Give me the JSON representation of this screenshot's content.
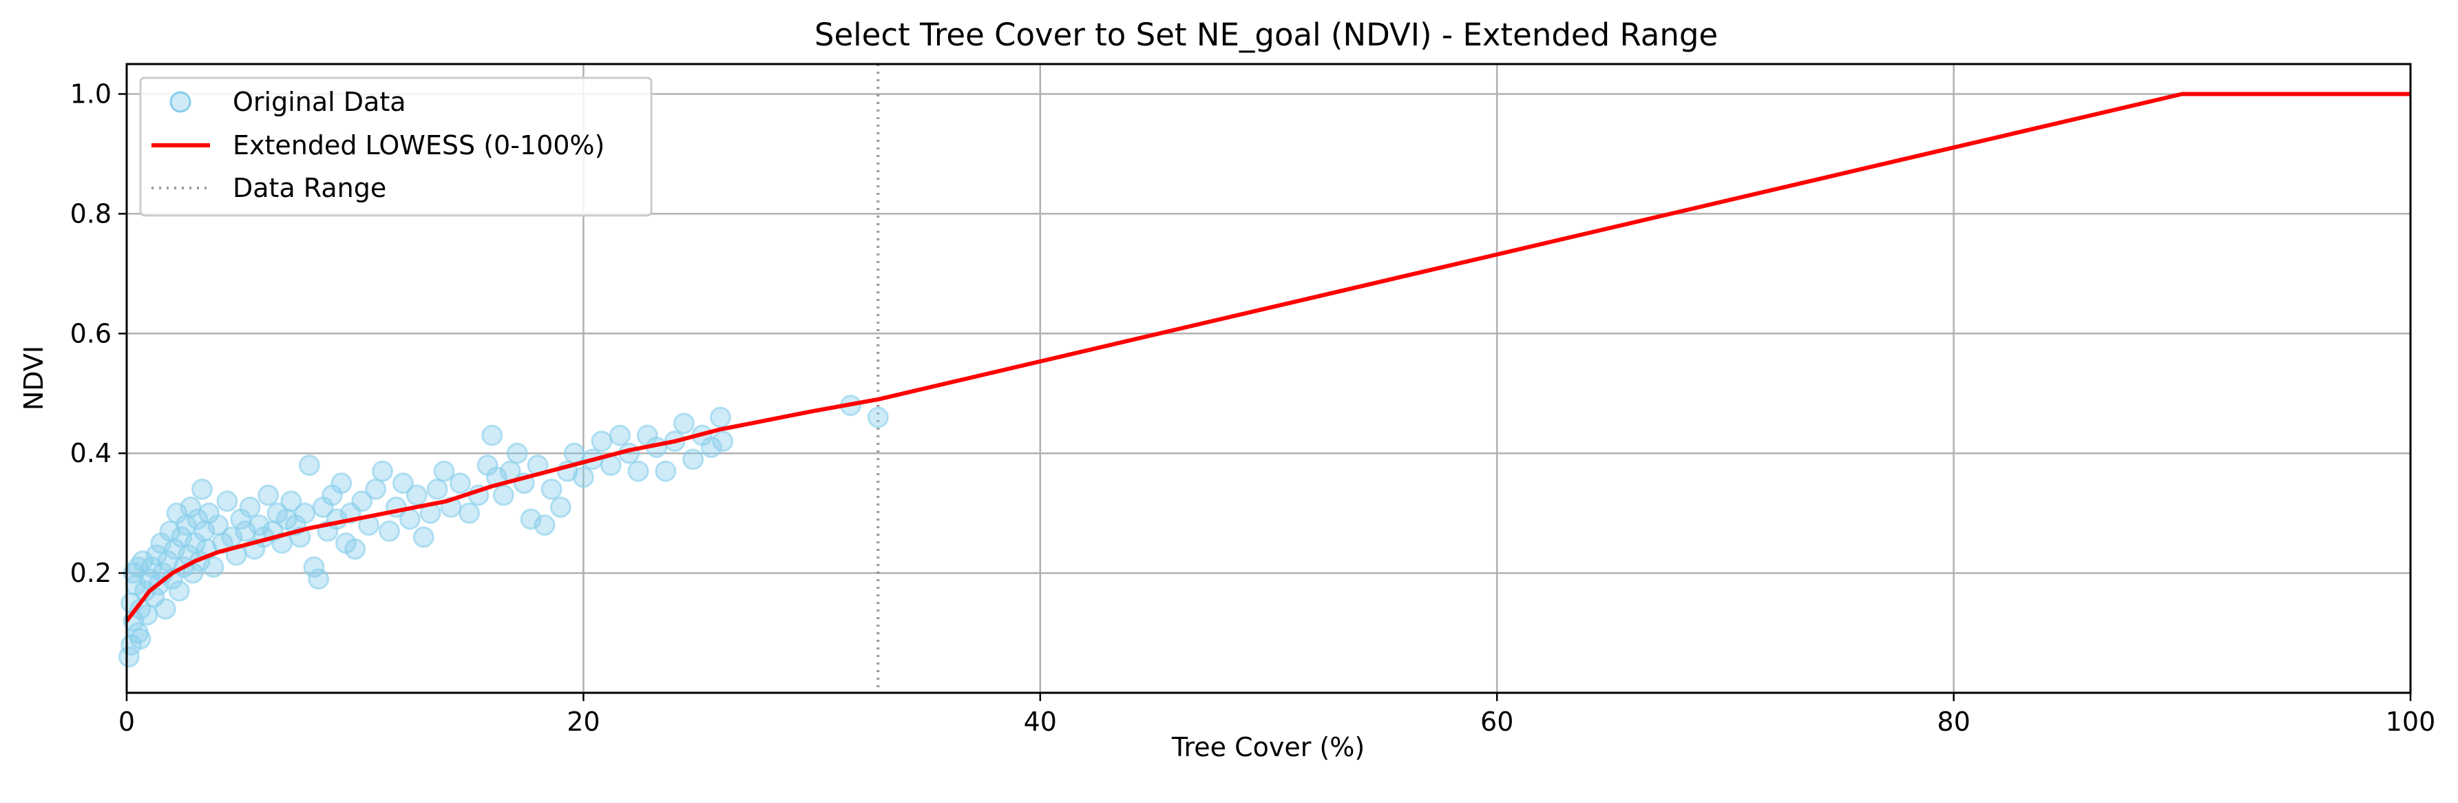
{
  "chart_data": {
    "type": "scatter",
    "title": "Select Tree Cover to Set NE_goal (NDVI) - Extended Range",
    "xlabel": "Tree Cover (%)",
    "ylabel": "NDVI",
    "xlim": [
      0,
      100
    ],
    "ylim": [
      0.0,
      1.05
    ],
    "xticks": [
      "0",
      "20",
      "40",
      "60",
      "80",
      "100"
    ],
    "yticks": [
      "0.2",
      "0.4",
      "0.6",
      "0.8",
      "1.0"
    ],
    "grid": true,
    "legend_position": "upper-left",
    "legend": [
      "Original Data",
      "Extended LOWESS (0-100%)",
      "Data Range"
    ],
    "colors": {
      "scatter": "#87ceeb",
      "lowess": "#ff0000",
      "range": "#808080"
    },
    "series": [
      {
        "name": "Original Data",
        "type": "scatter",
        "points": [
          [
            0.1,
            0.06
          ],
          [
            0.2,
            0.08
          ],
          [
            0.3,
            0.12
          ],
          [
            0.2,
            0.15
          ],
          [
            0.4,
            0.18
          ],
          [
            0.5,
            0.1
          ],
          [
            0.6,
            0.14
          ],
          [
            0.3,
            0.2
          ],
          [
            0.7,
            0.22
          ],
          [
            0.8,
            0.17
          ],
          [
            0.9,
            0.13
          ],
          [
            1.0,
            0.19
          ],
          [
            1.1,
            0.21
          ],
          [
            1.2,
            0.16
          ],
          [
            1.3,
            0.23
          ],
          [
            0.5,
            0.21
          ],
          [
            0.6,
            0.09
          ],
          [
            1.4,
            0.18
          ],
          [
            1.5,
            0.25
          ],
          [
            1.6,
            0.2
          ],
          [
            1.7,
            0.14
          ],
          [
            1.8,
            0.22
          ],
          [
            1.9,
            0.27
          ],
          [
            2.0,
            0.19
          ],
          [
            2.1,
            0.24
          ],
          [
            2.2,
            0.3
          ],
          [
            2.3,
            0.17
          ],
          [
            2.4,
            0.26
          ],
          [
            2.5,
            0.21
          ],
          [
            2.6,
            0.28
          ],
          [
            2.7,
            0.23
          ],
          [
            2.8,
            0.31
          ],
          [
            2.9,
            0.2
          ],
          [
            3.0,
            0.25
          ],
          [
            3.1,
            0.29
          ],
          [
            3.2,
            0.22
          ],
          [
            3.3,
            0.34
          ],
          [
            3.4,
            0.27
          ],
          [
            3.5,
            0.24
          ],
          [
            3.6,
            0.3
          ],
          [
            3.8,
            0.21
          ],
          [
            4.0,
            0.28
          ],
          [
            4.2,
            0.25
          ],
          [
            4.4,
            0.32
          ],
          [
            4.6,
            0.26
          ],
          [
            4.8,
            0.23
          ],
          [
            5.0,
            0.29
          ],
          [
            5.2,
            0.27
          ],
          [
            5.4,
            0.31
          ],
          [
            5.6,
            0.24
          ],
          [
            5.8,
            0.28
          ],
          [
            6.0,
            0.26
          ],
          [
            6.2,
            0.33
          ],
          [
            6.4,
            0.27
          ],
          [
            6.6,
            0.3
          ],
          [
            6.8,
            0.25
          ],
          [
            7.0,
            0.29
          ],
          [
            7.2,
            0.32
          ],
          [
            7.4,
            0.28
          ],
          [
            7.6,
            0.26
          ],
          [
            7.8,
            0.3
          ],
          [
            8.0,
            0.38
          ],
          [
            8.2,
            0.21
          ],
          [
            8.4,
            0.19
          ],
          [
            8.6,
            0.31
          ],
          [
            8.8,
            0.27
          ],
          [
            9.0,
            0.33
          ],
          [
            9.2,
            0.29
          ],
          [
            9.4,
            0.35
          ],
          [
            9.6,
            0.25
          ],
          [
            9.8,
            0.3
          ],
          [
            10.0,
            0.24
          ],
          [
            10.3,
            0.32
          ],
          [
            10.6,
            0.28
          ],
          [
            10.9,
            0.34
          ],
          [
            11.2,
            0.37
          ],
          [
            11.5,
            0.27
          ],
          [
            11.8,
            0.31
          ],
          [
            12.1,
            0.35
          ],
          [
            12.4,
            0.29
          ],
          [
            12.7,
            0.33
          ],
          [
            13.0,
            0.26
          ],
          [
            13.3,
            0.3
          ],
          [
            13.6,
            0.34
          ],
          [
            13.9,
            0.37
          ],
          [
            14.2,
            0.31
          ],
          [
            14.6,
            0.35
          ],
          [
            15.0,
            0.3
          ],
          [
            15.4,
            0.33
          ],
          [
            15.8,
            0.38
          ],
          [
            16.0,
            0.43
          ],
          [
            16.2,
            0.36
          ],
          [
            16.5,
            0.33
          ],
          [
            16.8,
            0.37
          ],
          [
            17.1,
            0.4
          ],
          [
            17.4,
            0.35
          ],
          [
            17.7,
            0.29
          ],
          [
            18.0,
            0.38
          ],
          [
            18.3,
            0.28
          ],
          [
            18.6,
            0.34
          ],
          [
            19.0,
            0.31
          ],
          [
            19.3,
            0.37
          ],
          [
            19.6,
            0.4
          ],
          [
            20.0,
            0.36
          ],
          [
            20.4,
            0.39
          ],
          [
            20.8,
            0.42
          ],
          [
            21.2,
            0.38
          ],
          [
            21.6,
            0.43
          ],
          [
            22.0,
            0.4
          ],
          [
            22.4,
            0.37
          ],
          [
            22.8,
            0.43
          ],
          [
            23.2,
            0.41
          ],
          [
            23.6,
            0.37
          ],
          [
            24.0,
            0.42
          ],
          [
            24.4,
            0.45
          ],
          [
            24.8,
            0.39
          ],
          [
            25.2,
            0.43
          ],
          [
            25.6,
            0.41
          ],
          [
            26.0,
            0.46
          ],
          [
            26.1,
            0.42
          ],
          [
            31.7,
            0.48
          ],
          [
            32.9,
            0.46
          ]
        ]
      },
      {
        "name": "Extended LOWESS (0-100%)",
        "type": "line",
        "points": [
          [
            0,
            0.12
          ],
          [
            1,
            0.17
          ],
          [
            2,
            0.2
          ],
          [
            3,
            0.22
          ],
          [
            4,
            0.235
          ],
          [
            6,
            0.255
          ],
          [
            8,
            0.275
          ],
          [
            10,
            0.29
          ],
          [
            12,
            0.305
          ],
          [
            14,
            0.32
          ],
          [
            16,
            0.345
          ],
          [
            18,
            0.365
          ],
          [
            20,
            0.385
          ],
          [
            22,
            0.405
          ],
          [
            24,
            0.42
          ],
          [
            26,
            0.44
          ],
          [
            28,
            0.455
          ],
          [
            30,
            0.47
          ],
          [
            32.9,
            0.49
          ],
          [
            90,
            1.0
          ],
          [
            100,
            1.0
          ]
        ]
      },
      {
        "name": "Data Range",
        "type": "vline",
        "x": 32.9
      }
    ]
  }
}
